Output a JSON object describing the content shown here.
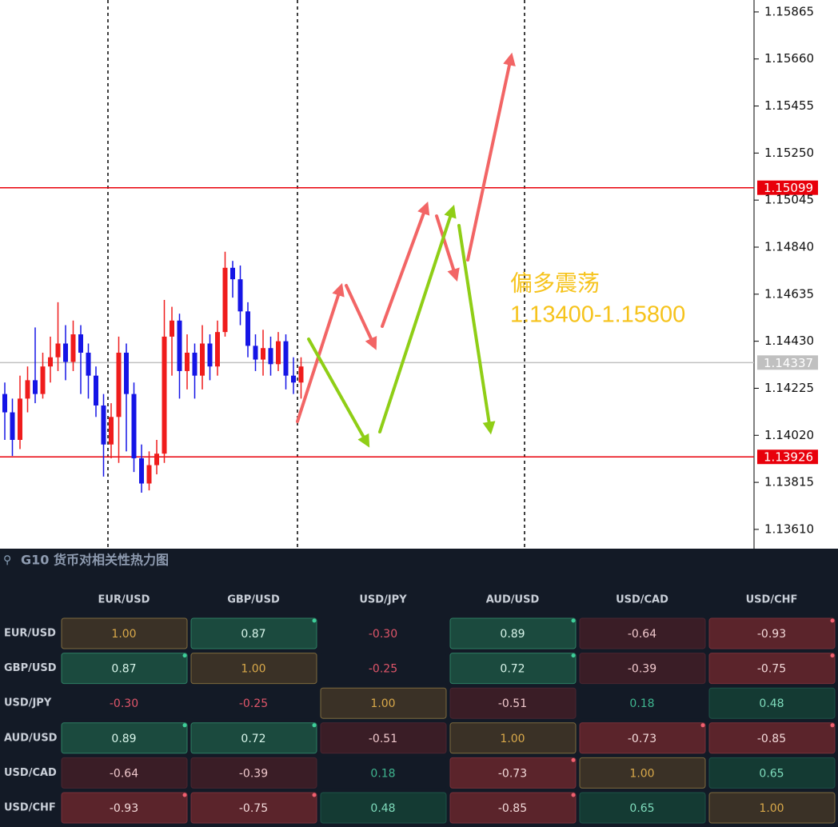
{
  "chart_data": [
    {
      "type": "candlestick",
      "open": [
        1.142,
        1.1412,
        1.14,
        1.1418,
        1.1426,
        1.142,
        1.1432,
        1.1436,
        1.1442,
        1.1434,
        1.1446,
        1.1438,
        1.1428,
        1.1415,
        1.1398,
        1.141,
        1.1438,
        1.142,
        1.1392,
        1.1381,
        1.1389,
        1.1394,
        1.1445,
        1.1452,
        1.143,
        1.1438,
        1.1428,
        1.1442,
        1.1432,
        1.1447,
        1.1475,
        1.147,
        1.1456,
        1.1441,
        1.1435,
        1.144,
        1.1433,
        1.1443,
        1.1428,
        1.1425
      ],
      "high": [
        1.1425,
        1.1418,
        1.1428,
        1.1432,
        1.1449,
        1.1438,
        1.1445,
        1.146,
        1.145,
        1.1452,
        1.145,
        1.1442,
        1.1432,
        1.142,
        1.1416,
        1.1445,
        1.1442,
        1.1425,
        1.1398,
        1.1395,
        1.14,
        1.1461,
        1.1458,
        1.1455,
        1.1446,
        1.1442,
        1.145,
        1.1446,
        1.1452,
        1.1482,
        1.1478,
        1.1476,
        1.146,
        1.1446,
        1.1448,
        1.1445,
        1.1447,
        1.1446,
        1.1436,
        1.1436
      ],
      "low": [
        1.14,
        1.1393,
        1.1396,
        1.1412,
        1.1416,
        1.1418,
        1.1425,
        1.143,
        1.1426,
        1.143,
        1.142,
        1.1418,
        1.141,
        1.1384,
        1.1392,
        1.139,
        1.1395,
        1.1386,
        1.1377,
        1.1378,
        1.1385,
        1.139,
        1.1428,
        1.1418,
        1.1422,
        1.1418,
        1.1422,
        1.1426,
        1.1428,
        1.1445,
        1.1462,
        1.145,
        1.1436,
        1.143,
        1.1428,
        1.1428,
        1.143,
        1.1422,
        1.142,
        1.1418
      ],
      "close": [
        1.1412,
        1.14,
        1.1418,
        1.1426,
        1.142,
        1.1432,
        1.1436,
        1.1442,
        1.1434,
        1.1446,
        1.1438,
        1.1428,
        1.1415,
        1.1398,
        1.141,
        1.1438,
        1.142,
        1.1392,
        1.1381,
        1.1389,
        1.1394,
        1.1445,
        1.1452,
        1.143,
        1.1438,
        1.1428,
        1.1442,
        1.1432,
        1.1447,
        1.1475,
        1.147,
        1.1456,
        1.1441,
        1.1435,
        1.144,
        1.1433,
        1.1443,
        1.1428,
        1.1425,
        1.1432
      ],
      "up_color": "#ef1c1c",
      "down_color": "#1515e6",
      "ylim": [
        1.13526,
        1.15917
      ],
      "yticks": [
        1.15865,
        {
          "value": 1.1566,
          "label": "1.15660"
        },
        1.15455,
        {
          "value": 1.1525,
          "label": "1.15250"
        },
        1.15045,
        {
          "value": 1.1484,
          "label": "1.14840"
        },
        1.14635,
        {
          "value": 1.1443,
          "label": "1.14430"
        },
        1.14225,
        {
          "value": 1.1402,
          "label": "1.14020"
        },
        1.13815,
        {
          "value": 1.1361,
          "label": "1.13610"
        }
      ],
      "price_lines": [
        {
          "value": 1.15099,
          "color": "#e8000b"
        },
        {
          "value": 1.14337,
          "color": "#c0c0c0"
        },
        {
          "value": 1.13926,
          "color": "#e8000b"
        }
      ],
      "annotations": [
        "偏多震荡",
        "1.13400-1.15800"
      ]
    },
    {
      "type": "heatmap",
      "title": "G10 货币对相关性热力图",
      "x_categories": [
        "EUR/USD",
        "GBP/USD",
        "USD/JPY",
        "AUD/USD",
        "USD/CAD",
        "USD/CHF"
      ],
      "y_categories": [
        "EUR/USD",
        "GBP/USD",
        "USD/JPY",
        "AUD/USD",
        "USD/CAD",
        "USD/CHF"
      ],
      "values": [
        [
          1,
          0.87,
          -0.3,
          0.89,
          -0.64,
          -0.93
        ],
        [
          0.87,
          1,
          -0.25,
          0.72,
          -0.39,
          -0.75
        ],
        [
          -0.3,
          -0.25,
          1,
          -0.51,
          0.18,
          0.48
        ],
        [
          0.89,
          0.72,
          -0.51,
          1,
          -0.73,
          -0.85
        ],
        [
          -0.64,
          -0.39,
          0.18,
          -0.73,
          1,
          0.65
        ],
        [
          -0.93,
          -0.75,
          0.48,
          -0.85,
          0.65,
          1
        ]
      ],
      "value_labels": [
        [
          "1.00",
          "0.87",
          "-0.30",
          "0.89",
          "-0.64",
          "-0.93"
        ],
        [
          "0.87",
          "1.00",
          "-0.25",
          "0.72",
          "-0.39",
          "-0.75"
        ],
        [
          "-0.30",
          "-0.25",
          "1.00",
          "-0.51",
          "0.18",
          "0.48"
        ],
        [
          "0.89",
          "0.72",
          "-0.51",
          "1.00",
          "-0.73",
          "-0.85"
        ],
        [
          "-0.64",
          "-0.39",
          "0.18",
          "-0.73",
          "1.00",
          "0.65"
        ],
        [
          "-0.93",
          "-0.75",
          "0.48",
          "-0.85",
          "0.65",
          "1.00"
        ]
      ]
    }
  ]
}
